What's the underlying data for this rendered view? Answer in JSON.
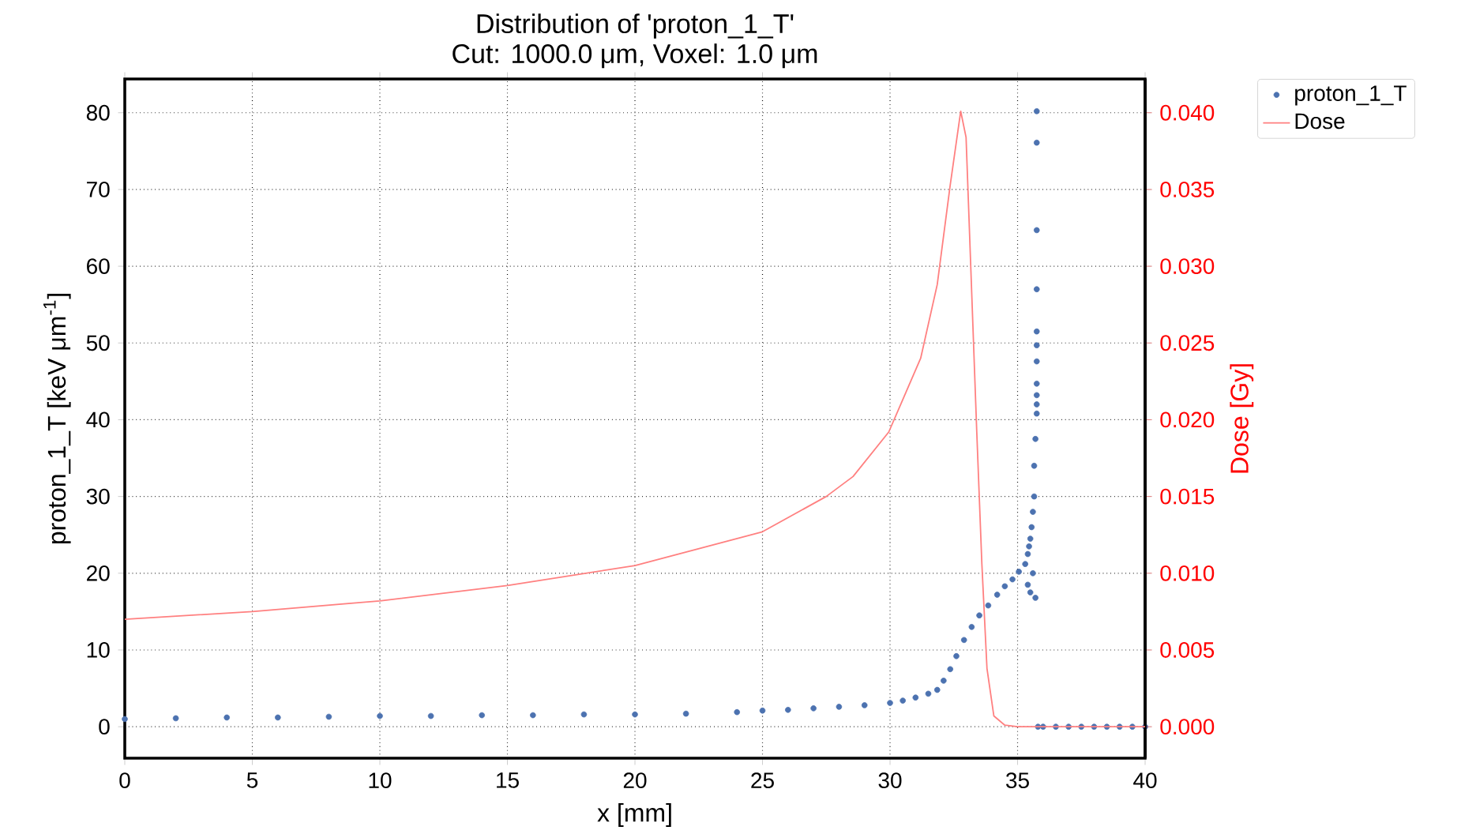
{
  "chart_data": {
    "type": "scatter",
    "title": "Distribution of 'proton_1_T'",
    "subtitle": "Cut: 1000.0 μm, Voxel: 1.0 μm",
    "xlabel": "x [mm]",
    "ylabel": "proton_1_T [keV μm$^{-1}$]",
    "y2label": "Dose [Gy]",
    "xlim": [
      0,
      40
    ],
    "ylim": [
      -4.1,
      84.4
    ],
    "y2lim": [
      -0.00205,
      0.0422
    ],
    "xticks": [
      0,
      5,
      10,
      15,
      20,
      25,
      30,
      35,
      40
    ],
    "yticks": [
      0,
      10,
      20,
      30,
      40,
      50,
      60,
      70,
      80
    ],
    "y2ticks": [
      {
        "value": 0,
        "label": "0.000"
      },
      {
        "value": 0.005,
        "label": "0.005"
      },
      {
        "value": 0.01,
        "label": "0.010"
      },
      {
        "value": 0.015,
        "label": "0.015"
      },
      {
        "value": 0.02,
        "label": "0.020"
      },
      {
        "value": 0.025,
        "label": "0.025"
      },
      {
        "value": 0.03,
        "label": "0.030"
      },
      {
        "value": 0.035,
        "label": "0.035"
      },
      {
        "value": 0.04,
        "label": "0.040"
      }
    ],
    "grid": true,
    "legend": "top right",
    "marker": "circle",
    "series": [
      {
        "name": "proton_1_T",
        "color": "#4c72b0",
        "x": [
          0,
          2,
          4,
          6,
          8,
          10,
          12,
          14,
          16,
          18,
          20,
          22,
          24,
          25,
          26,
          27,
          28,
          29,
          30,
          30.5,
          31,
          31.5,
          31.85,
          32.1,
          32.36,
          32.6,
          32.9,
          33.2,
          33.5,
          33.85,
          34.2,
          34.5,
          34.8,
          35.05,
          35.3,
          35.4,
          35.45,
          35.5,
          35.55,
          35.6,
          35.65,
          35.7,
          35.75,
          35.75,
          35.75,
          35.75,
          35.75,
          35.75,
          35.75,
          35.75,
          35.75,
          35.75,
          35.75,
          35.7,
          35.65,
          35.6,
          35.5,
          35.4,
          35.8,
          36,
          36.5,
          37,
          37.5,
          38,
          38.5,
          39,
          39.5,
          40
        ],
        "values": [
          1.0,
          1.1,
          1.2,
          1.2,
          1.3,
          1.4,
          1.4,
          1.5,
          1.5,
          1.6,
          1.6,
          1.7,
          1.9,
          2.1,
          2.2,
          2.4,
          2.6,
          2.8,
          3.1,
          3.4,
          3.8,
          4.3,
          4.8,
          6.0,
          7.5,
          9.2,
          11.3,
          13.0,
          14.5,
          15.8,
          17.2,
          18.3,
          19.2,
          20.2,
          21.2,
          18.5,
          23.5,
          17.5,
          26.0,
          20.0,
          30.0,
          16.8,
          80.2,
          76.1,
          64.7,
          57.0,
          51.5,
          49.7,
          47.6,
          44.7,
          43.2,
          42.0,
          40.8,
          37.5,
          34.0,
          28.0,
          24.5,
          22.5,
          0,
          0,
          0,
          0,
          0,
          0,
          0,
          0,
          0,
          0
        ]
      },
      {
        "name": "Dose",
        "type": "line",
        "marker": "none",
        "axis": "y2",
        "color": "#ff8080",
        "x": [
          0,
          5,
          10,
          15,
          20,
          25,
          27.5,
          28.55,
          29.95,
          31.2,
          31.85,
          32.36,
          32.77,
          32.98,
          33.19,
          33.4,
          33.6,
          33.8,
          34.07,
          34.5,
          35,
          40
        ],
        "values": [
          0.007,
          0.0075,
          0.0082,
          0.0092,
          0.0105,
          0.0127,
          0.015,
          0.0163,
          0.0192,
          0.024,
          0.0288,
          0.0353,
          0.0401,
          0.0384,
          0.0288,
          0.0192,
          0.0106,
          0.0038,
          0.0007,
          0.0001,
          0,
          0
        ]
      }
    ]
  }
}
